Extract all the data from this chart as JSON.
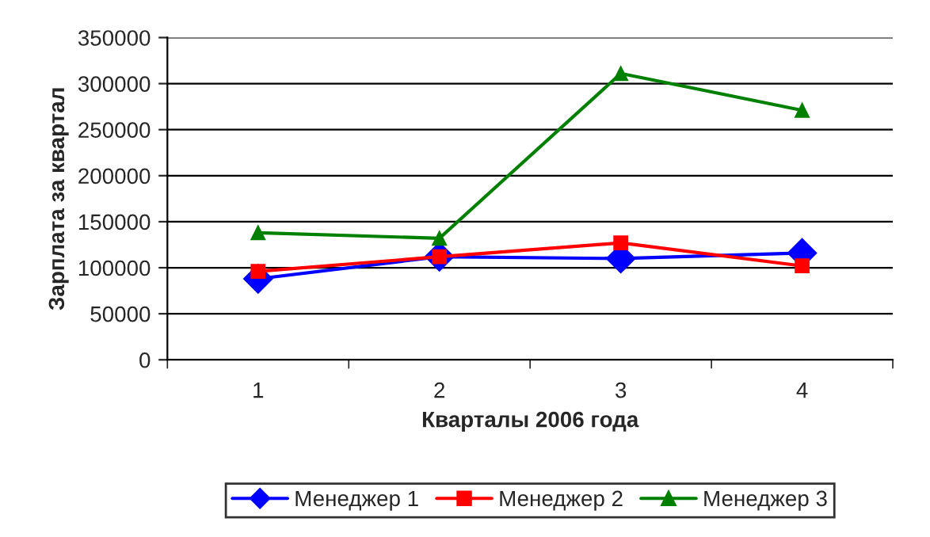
{
  "chart_data": {
    "type": "line",
    "xlabel": "Кварталы 2006 года",
    "ylabel": "Зарплата за квартал",
    "categories": [
      "1",
      "2",
      "3",
      "4"
    ],
    "series": [
      {
        "name": "Менеджер 1",
        "color": "#0000ff",
        "marker": "diamond",
        "values": [
          88000,
          112000,
          110000,
          116000
        ]
      },
      {
        "name": "Менеджер 2",
        "color": "#ff0000",
        "marker": "square",
        "values": [
          96000,
          112000,
          127000,
          102000
        ]
      },
      {
        "name": "Менеджер 3",
        "color": "#008000",
        "marker": "triangle",
        "values": [
          138000,
          132000,
          311000,
          271000
        ]
      }
    ],
    "ylim": [
      0,
      350000
    ],
    "yticks": [
      0,
      50000,
      100000,
      150000,
      200000,
      250000,
      300000,
      350000
    ],
    "grid": "y",
    "legend": "bottom"
  }
}
